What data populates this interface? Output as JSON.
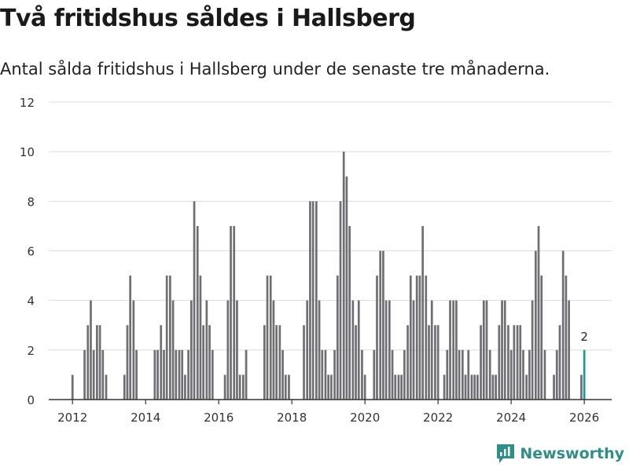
{
  "title": "Två fritidshus såldes i Hallsberg",
  "subtitle": "Antal sålda fritidshus i Hallsberg under de senaste tre månaderna.",
  "brand": {
    "name": "Newsworthy",
    "icon": "newsworthy-logo-icon"
  },
  "colors": {
    "bar": "#6e6e73",
    "highlight": "#1a9c92",
    "grid": "#dcdcdc",
    "axis": "#333333"
  },
  "chart_data": {
    "type": "bar",
    "title": "Två fritidshus såldes i Hallsberg",
    "xlabel": "",
    "ylabel": "",
    "xlim": [
      2011.35,
      2026.75
    ],
    "ylim": [
      0,
      12
    ],
    "yticks": [
      0,
      2,
      4,
      6,
      8,
      10,
      12
    ],
    "xticks": [
      2012,
      2014,
      2016,
      2018,
      2020,
      2022,
      2024,
      2026
    ],
    "grid": true,
    "bar_width": 0.058,
    "series": [
      {
        "name": "Sålda fritidshus",
        "x": [
          2012.0,
          2012.08,
          2012.17,
          2012.25,
          2012.33,
          2012.42,
          2012.5,
          2012.58,
          2012.67,
          2012.75,
          2012.83,
          2012.92,
          2013.0,
          2013.08,
          2013.17,
          2013.25,
          2013.33,
          2013.42,
          2013.5,
          2013.58,
          2013.67,
          2013.75,
          2013.83,
          2013.92,
          2014.0,
          2014.08,
          2014.17,
          2014.25,
          2014.33,
          2014.42,
          2014.5,
          2014.58,
          2014.67,
          2014.75,
          2014.83,
          2014.92,
          2015.0,
          2015.08,
          2015.17,
          2015.25,
          2015.33,
          2015.42,
          2015.5,
          2015.58,
          2015.67,
          2015.75,
          2015.83,
          2015.92,
          2016.0,
          2016.08,
          2016.17,
          2016.25,
          2016.33,
          2016.42,
          2016.5,
          2016.58,
          2016.67,
          2016.75,
          2016.83,
          2016.92,
          2017.0,
          2017.08,
          2017.17,
          2017.25,
          2017.33,
          2017.42,
          2017.5,
          2017.58,
          2017.67,
          2017.75,
          2017.83,
          2017.92,
          2018.0,
          2018.08,
          2018.17,
          2018.25,
          2018.33,
          2018.42,
          2018.5,
          2018.58,
          2018.67,
          2018.75,
          2018.83,
          2018.92,
          2019.0,
          2019.08,
          2019.17,
          2019.25,
          2019.33,
          2019.42,
          2019.5,
          2019.58,
          2019.67,
          2019.75,
          2019.83,
          2019.92,
          2020.0,
          2020.08,
          2020.17,
          2020.25,
          2020.33,
          2020.42,
          2020.5,
          2020.58,
          2020.67,
          2020.75,
          2020.83,
          2020.92,
          2021.0,
          2021.08,
          2021.17,
          2021.25,
          2021.33,
          2021.42,
          2021.5,
          2021.58,
          2021.67,
          2021.75,
          2021.83,
          2021.92,
          2022.0,
          2022.08,
          2022.17,
          2022.25,
          2022.33,
          2022.42,
          2022.5,
          2022.58,
          2022.67,
          2022.75,
          2022.83,
          2022.92,
          2023.0,
          2023.08,
          2023.17,
          2023.25,
          2023.33,
          2023.42,
          2023.5,
          2023.58,
          2023.67,
          2023.75,
          2023.83,
          2023.92,
          2024.0,
          2024.08,
          2024.17,
          2024.25,
          2024.33,
          2024.42,
          2024.5,
          2024.58,
          2024.67,
          2024.75,
          2024.83,
          2024.92,
          2025.0,
          2025.08,
          2025.17,
          2025.25,
          2025.33,
          2025.42,
          2025.5,
          2025.58,
          2025.67,
          2025.75,
          2025.83,
          2025.92,
          2026.0
        ],
        "values": [
          1,
          0,
          0,
          0,
          2,
          3,
          4,
          2,
          3,
          3,
          2,
          1,
          0,
          0,
          0,
          0,
          0,
          1,
          3,
          5,
          4,
          2,
          0,
          0,
          0,
          0,
          0,
          2,
          2,
          3,
          2,
          5,
          5,
          4,
          2,
          2,
          2,
          1,
          2,
          4,
          8,
          7,
          5,
          3,
          4,
          3,
          2,
          0,
          0,
          0,
          1,
          4,
          7,
          7,
          4,
          1,
          1,
          2,
          0,
          0,
          0,
          0,
          0,
          3,
          5,
          5,
          4,
          3,
          3,
          2,
          1,
          1,
          0,
          0,
          0,
          0,
          3,
          4,
          8,
          8,
          8,
          4,
          2,
          2,
          1,
          1,
          2,
          5,
          8,
          10,
          9,
          7,
          4,
          3,
          4,
          2,
          1,
          0,
          0,
          2,
          5,
          6,
          6,
          4,
          4,
          2,
          1,
          1,
          1,
          2,
          3,
          5,
          4,
          5,
          5,
          7,
          5,
          3,
          4,
          3,
          3,
          0,
          1,
          2,
          4,
          4,
          4,
          2,
          2,
          1,
          2,
          1,
          1,
          1,
          3,
          4,
          4,
          2,
          1,
          1,
          3,
          4,
          4,
          3,
          2,
          3,
          3,
          3,
          2,
          1,
          2,
          4,
          6,
          7,
          5,
          2,
          0,
          0,
          1,
          2,
          3,
          6,
          5,
          4,
          0,
          0,
          0,
          1,
          2
        ],
        "label_last": "2"
      }
    ]
  }
}
